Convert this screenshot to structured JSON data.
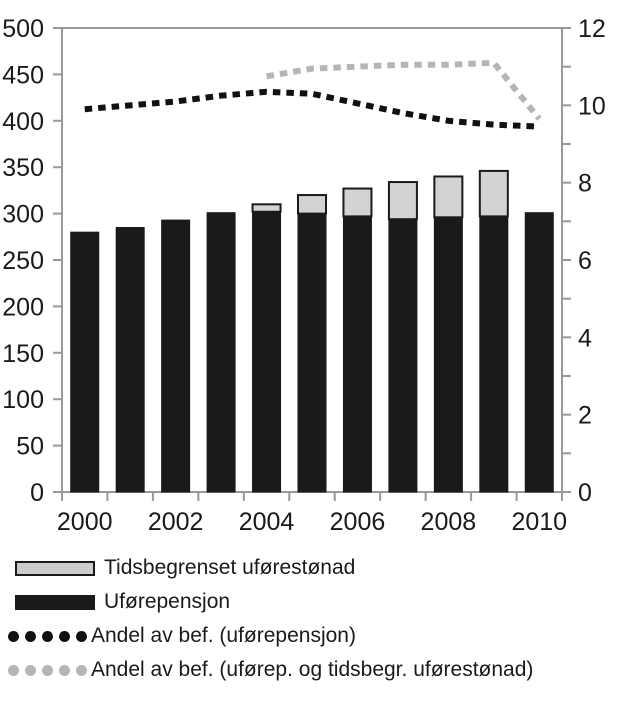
{
  "chart_data": {
    "type": "bar",
    "subtype": "stacked-bars-with-dotted-lines",
    "title": "",
    "xlabel": "",
    "ylabel_left": "",
    "ylabel_right": "",
    "categories": [
      "2000",
      "2001",
      "2002",
      "2003",
      "2004",
      "2005",
      "2006",
      "2007",
      "2008",
      "2009",
      "2010"
    ],
    "x_tick_labels": [
      "2000",
      "2002",
      "2004",
      "2006",
      "2008",
      "2010"
    ],
    "left_axis": {
      "min": 0,
      "max": 500,
      "tick_step": 50,
      "tick_labels": [
        "0",
        "50",
        "100",
        "150",
        "200",
        "250",
        "300",
        "350",
        "400",
        "450",
        "500"
      ]
    },
    "right_axis": {
      "min": 0,
      "max": 12,
      "tick_step": 1,
      "label_step": 2,
      "tick_labels": [
        "0",
        "2",
        "4",
        "6",
        "8",
        "10",
        "12"
      ]
    },
    "grid": false,
    "legend_position": "bottom-left",
    "series": [
      {
        "name": "Uførepensjon",
        "type": "bar",
        "axis": "left",
        "color": "#1a1a1a",
        "values": [
          280,
          285,
          293,
          301,
          302,
          300,
          297,
          294,
          296,
          297,
          301
        ]
      },
      {
        "name": "Tidsbegrenset uførestønad",
        "type": "bar-stacked-on-top",
        "axis": "left",
        "color": "#d3d3d3",
        "values": [
          0,
          0,
          0,
          0,
          8,
          20,
          30,
          40,
          44,
          49,
          0
        ]
      },
      {
        "name": "Andel av bef. (uførepensjon)",
        "type": "dotted-line",
        "axis": "right",
        "color": "#111111",
        "values": [
          9.9,
          10.0,
          10.1,
          10.25,
          10.35,
          10.3,
          10.05,
          9.8,
          9.6,
          9.5,
          9.45
        ]
      },
      {
        "name": "Andel av bef. (uførep. og tidsbegr. uførestønad)",
        "type": "dotted-line",
        "axis": "right",
        "color": "#b5b5b5",
        "values": [
          null,
          null,
          null,
          null,
          10.75,
          10.95,
          11.0,
          11.05,
          11.05,
          11.1,
          9.65
        ]
      }
    ]
  },
  "legend": {
    "items": [
      {
        "label": "Tidsbegrenset uførestønad",
        "marker": "gray-box"
      },
      {
        "label": "Uførepensjon",
        "marker": "black-box"
      },
      {
        "label": "Andel av bef. (uførepensjon)",
        "marker": "black-dots"
      },
      {
        "label": "Andel av bef. (uførep. og tidsbegr. uførestønad)",
        "marker": "gray-dots"
      }
    ]
  },
  "colors": {
    "bar_black": "#1a1a1a",
    "bar_gray_fill": "#d3d3d3",
    "bar_gray_border": "#1a1a1a",
    "line_black": "#111111",
    "line_gray": "#b5b5b5",
    "axis": "#999999",
    "text": "#1a1a1a",
    "background": "#ffffff"
  }
}
